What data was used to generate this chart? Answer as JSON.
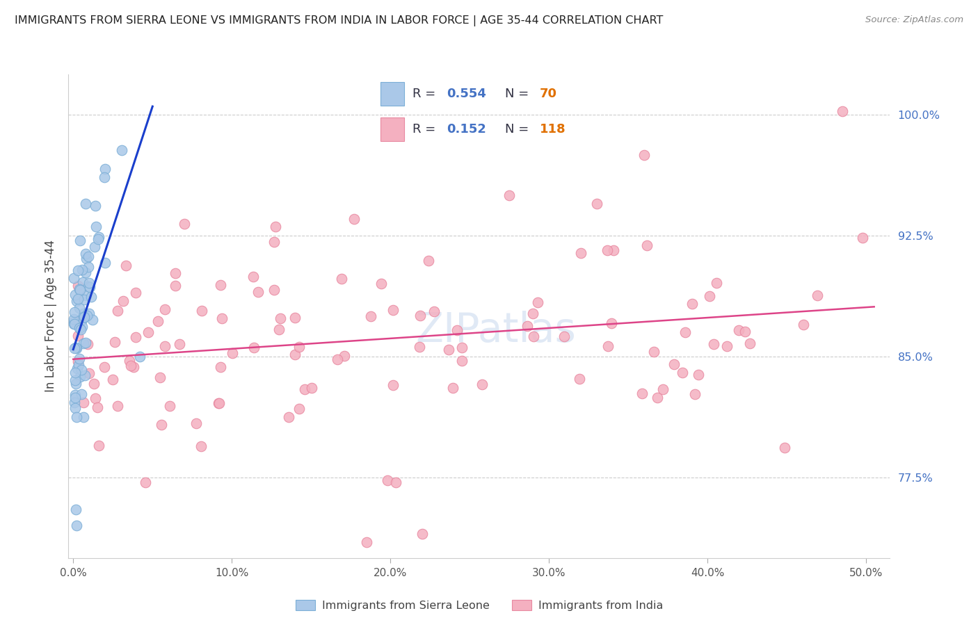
{
  "title": "IMMIGRANTS FROM SIERRA LEONE VS IMMIGRANTS FROM INDIA IN LABOR FORCE | AGE 35-44 CORRELATION CHART",
  "source": "Source: ZipAtlas.com",
  "ylabel": "In Labor Force | Age 35-44",
  "x_tick_labels": [
    "0.0%",
    "10.0%",
    "20.0%",
    "30.0%",
    "40.0%",
    "50.0%"
  ],
  "x_tick_values": [
    0.0,
    10.0,
    20.0,
    30.0,
    40.0,
    50.0
  ],
  "y_tick_labels": [
    "77.5%",
    "85.0%",
    "92.5%",
    "100.0%"
  ],
  "y_tick_values": [
    77.5,
    85.0,
    92.5,
    100.0
  ],
  "xlim": [
    -0.3,
    51.5
  ],
  "ylim": [
    72.5,
    102.5
  ],
  "sierra_leone_color": "#aac8e8",
  "sierra_leone_edge": "#7baed6",
  "india_color": "#f4b0c0",
  "india_edge": "#e888a0",
  "blue_line_color": "#1a3fcc",
  "pink_line_color": "#dd4488",
  "r_sl": "0.554",
  "n_sl": "70",
  "r_india": "0.152",
  "n_india": "118",
  "watermark": "ZIPatlas",
  "legend_label_sl": "Immigrants from Sierra Leone",
  "legend_label_india": "Immigrants from India",
  "text_color_dark": "#333344",
  "text_color_blue": "#4472c4",
  "grid_color": "#cccccc"
}
